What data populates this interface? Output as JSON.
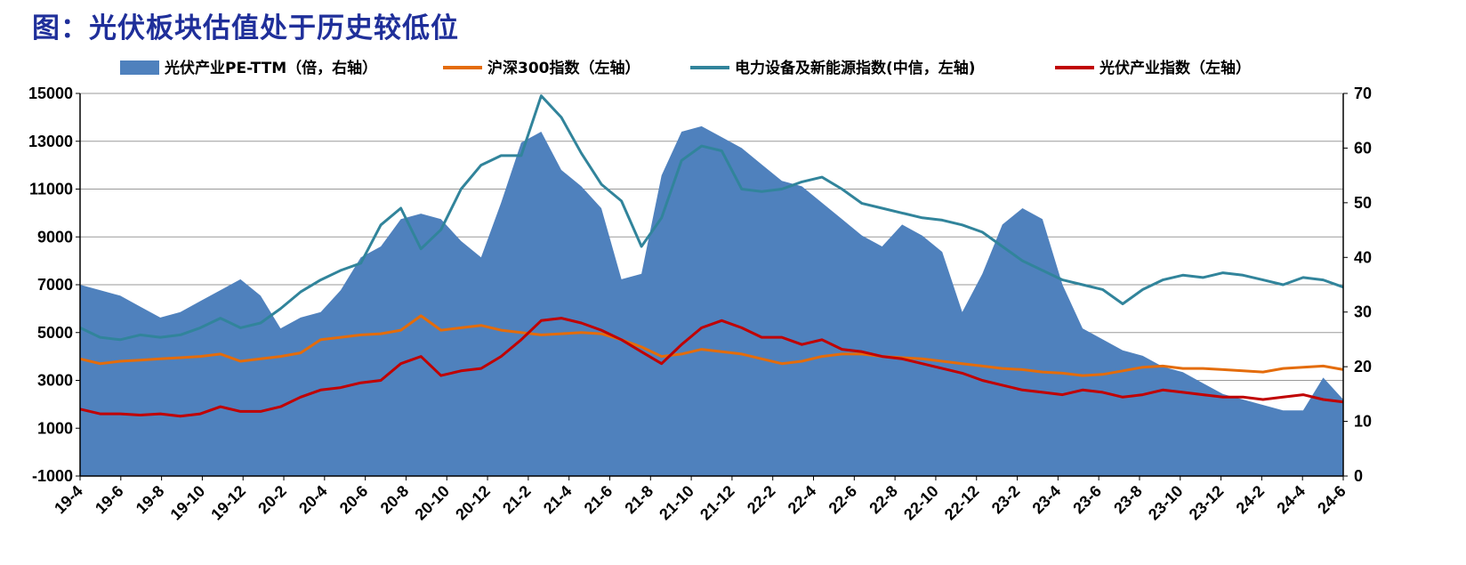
{
  "figure": {
    "title": "图：光伏板块估值处于历史较低位"
  },
  "chart_data": {
    "type": "line",
    "x_ticks": [
      "19-4",
      "19-6",
      "19-8",
      "19-10",
      "19-12",
      "20-2",
      "20-4",
      "20-6",
      "20-8",
      "20-10",
      "20-12",
      "21-2",
      "21-4",
      "21-6",
      "21-8",
      "21-10",
      "21-12",
      "22-2",
      "22-4",
      "22-6",
      "22-8",
      "22-10",
      "22-12",
      "23-2",
      "23-4",
      "23-6",
      "23-8",
      "23-10",
      "23-12",
      "24-2",
      "24-4",
      "24-6"
    ],
    "y_left": {
      "min": -1000,
      "max": 15000,
      "ticks": [
        "-1000",
        "1000",
        "3000",
        "5000",
        "7000",
        "9000",
        "11000",
        "13000",
        "15000"
      ]
    },
    "y_right": {
      "min": 0,
      "max": 70,
      "ticks": [
        "0",
        "10",
        "20",
        "30",
        "40",
        "50",
        "60",
        "70"
      ]
    },
    "grid": true,
    "legend_position": "top",
    "series": [
      {
        "name": "光伏产业PE-TTM（倍，右轴）",
        "type": "area",
        "axis": "right",
        "color": "#4f81bd",
        "x": [
          0,
          1,
          2,
          3,
          4,
          5,
          6,
          7,
          8,
          9,
          10,
          11,
          12,
          13,
          14,
          15,
          16,
          17,
          18,
          19,
          20,
          21,
          22,
          23,
          24,
          25,
          26,
          27,
          28,
          29,
          30,
          31,
          32,
          33,
          34,
          35,
          36,
          37,
          38,
          39,
          40,
          41,
          42,
          43,
          44,
          45,
          46,
          47,
          48,
          49,
          50,
          51,
          52,
          53,
          54,
          55,
          56,
          57,
          58,
          59,
          60,
          61,
          62,
          63
        ],
        "values": [
          35,
          34,
          33,
          31,
          29,
          30,
          32,
          34,
          36,
          33,
          27,
          29,
          30,
          34,
          40,
          42,
          47,
          48,
          47,
          43,
          40,
          50,
          61,
          63,
          56,
          53,
          49,
          36,
          37,
          55,
          63,
          64,
          62,
          60,
          57,
          54,
          53,
          50,
          47,
          44,
          42,
          46,
          44,
          41,
          30,
          37,
          46,
          49,
          47,
          35,
          27,
          25,
          23,
          22,
          20,
          19,
          17,
          15,
          14,
          13,
          12,
          12,
          18,
          14
        ]
      },
      {
        "name": "沪深300指数（左轴）",
        "type": "line",
        "axis": "left",
        "color": "#e46c0a",
        "x": [
          0,
          1,
          2,
          3,
          4,
          5,
          6,
          7,
          8,
          9,
          10,
          11,
          12,
          13,
          14,
          15,
          16,
          17,
          18,
          19,
          20,
          21,
          22,
          23,
          24,
          25,
          26,
          27,
          28,
          29,
          30,
          31,
          32,
          33,
          34,
          35,
          36,
          37,
          38,
          39,
          40,
          41,
          42,
          43,
          44,
          45,
          46,
          47,
          48,
          49,
          50,
          51,
          52,
          53,
          54,
          55,
          56,
          57,
          58,
          59,
          60,
          61,
          62,
          63
        ],
        "values": [
          3900,
          3700,
          3800,
          3850,
          3900,
          3950,
          4000,
          4100,
          3800,
          3900,
          4000,
          4150,
          4700,
          4800,
          4900,
          4950,
          5100,
          5700,
          5100,
          5200,
          5300,
          5100,
          5000,
          4900,
          4950,
          5000,
          4950,
          4700,
          4400,
          4000,
          4100,
          4300,
          4200,
          4100,
          3900,
          3700,
          3800,
          4000,
          4100,
          4100,
          4000,
          3950,
          3900,
          3800,
          3700,
          3600,
          3500,
          3450,
          3350,
          3300,
          3200,
          3250,
          3400,
          3550,
          3600,
          3500,
          3500,
          3450,
          3400,
          3350,
          3500,
          3550,
          3600,
          3450
        ]
      },
      {
        "name": "电力设备及新能源指数(中信，左轴)",
        "type": "line",
        "axis": "left",
        "color": "#31849b",
        "x": [
          0,
          1,
          2,
          3,
          4,
          5,
          6,
          7,
          8,
          9,
          10,
          11,
          12,
          13,
          14,
          15,
          16,
          17,
          18,
          19,
          20,
          21,
          22,
          23,
          24,
          25,
          26,
          27,
          28,
          29,
          30,
          31,
          32,
          33,
          34,
          35,
          36,
          37,
          38,
          39,
          40,
          41,
          42,
          43,
          44,
          45,
          46,
          47,
          48,
          49,
          50,
          51,
          52,
          53,
          54,
          55,
          56,
          57,
          58,
          59,
          60,
          61,
          62,
          63
        ],
        "values": [
          5200,
          4800,
          4700,
          4900,
          4800,
          4900,
          5200,
          5600,
          5200,
          5400,
          6000,
          6700,
          7200,
          7600,
          7900,
          9500,
          10200,
          8500,
          9300,
          11000,
          12000,
          12400,
          12400,
          14900,
          14000,
          12500,
          11200,
          10500,
          8600,
          9800,
          12200,
          12800,
          12600,
          11000,
          10900,
          11000,
          11300,
          11500,
          11000,
          10400,
          10200,
          10000,
          9800,
          9700,
          9500,
          9200,
          8600,
          8000,
          7600,
          7200,
          7000,
          6800,
          6200,
          6800,
          7200,
          7400,
          7300,
          7500,
          7400,
          7200,
          7000,
          7300,
          7200,
          6900
        ]
      },
      {
        "name": "光伏产业指数（左轴）",
        "type": "line",
        "axis": "left",
        "color": "#c00000",
        "x": [
          0,
          1,
          2,
          3,
          4,
          5,
          6,
          7,
          8,
          9,
          10,
          11,
          12,
          13,
          14,
          15,
          16,
          17,
          18,
          19,
          20,
          21,
          22,
          23,
          24,
          25,
          26,
          27,
          28,
          29,
          30,
          31,
          32,
          33,
          34,
          35,
          36,
          37,
          38,
          39,
          40,
          41,
          42,
          43,
          44,
          45,
          46,
          47,
          48,
          49,
          50,
          51,
          52,
          53,
          54,
          55,
          56,
          57,
          58,
          59,
          60,
          61,
          62,
          63
        ],
        "values": [
          1800,
          1600,
          1600,
          1550,
          1600,
          1500,
          1600,
          1900,
          1700,
          1700,
          1900,
          2300,
          2600,
          2700,
          2900,
          3000,
          3700,
          4000,
          3200,
          3400,
          3500,
          4000,
          4700,
          5500,
          5600,
          5400,
          5100,
          4700,
          4200,
          3700,
          4500,
          5200,
          5500,
          5200,
          4800,
          4800,
          4500,
          4700,
          4300,
          4200,
          4000,
          3900,
          3700,
          3500,
          3300,
          3000,
          2800,
          2600,
          2500,
          2400,
          2600,
          2500,
          2300,
          2400,
          2600,
          2500,
          2400,
          2300,
          2300,
          2200,
          2300,
          2400,
          2200,
          2100
        ]
      }
    ]
  }
}
